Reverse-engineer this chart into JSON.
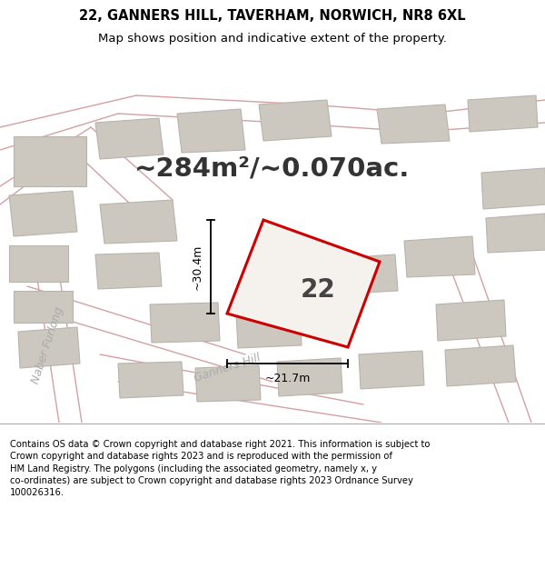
{
  "title_line1": "22, GANNERS HILL, TAVERHAM, NORWICH, NR8 6XL",
  "title_line2": "Map shows position and indicative extent of the property.",
  "area_text": "~284m²/~0.070ac.",
  "number_label": "22",
  "dim_width": "~21.7m",
  "dim_height": "~30.4m",
  "street_label1": "Ganners Hill",
  "street_label2": "Naber Furlong",
  "footer_text": "Contains OS data © Crown copyright and database right 2021. This information is subject to\nCrown copyright and database rights 2023 and is reproduced with the permission of\nHM Land Registry. The polygons (including the associated geometry, namely x, y\nco-ordinates) are subject to Crown copyright and database rights 2023 Ordnance Survey\n100026316.",
  "map_bg": "#ede9e2",
  "road_color": "#f2c8c8",
  "road_edge_color": "#d4a0a0",
  "building_fill": "#ccc8c0",
  "building_edge": "#b8b4ac",
  "plot_color": "#cc0000",
  "plot_fill": "#f5f2ee",
  "title_fontsize": 10.5,
  "subtitle_fontsize": 9.5,
  "area_fontsize": 21,
  "number_fontsize": 20,
  "dim_fontsize": 9,
  "street_fontsize": 9,
  "footer_fontsize": 7.2
}
